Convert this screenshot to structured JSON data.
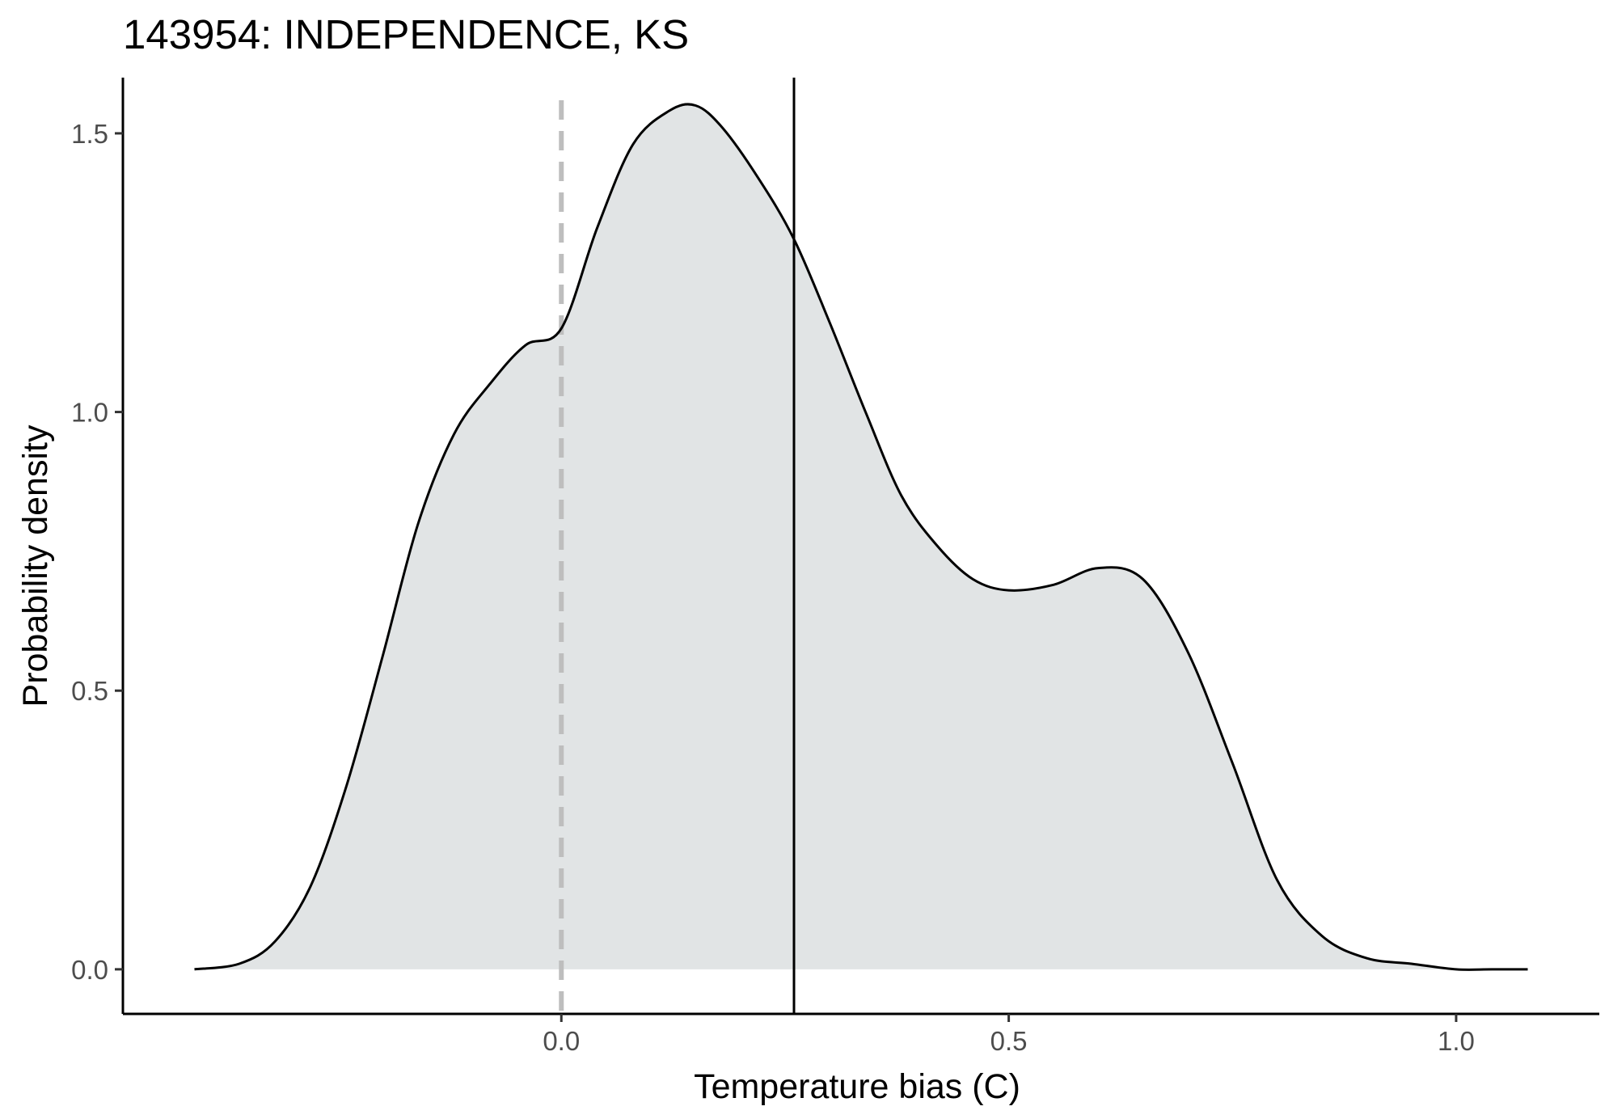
{
  "chart_data": {
    "type": "area",
    "title": "143954: INDEPENDENCE, KS",
    "xlabel": "Temperature bias (C)",
    "ylabel": "Probability density",
    "xlim": [
      -0.49,
      1.16
    ],
    "ylim": [
      -0.08,
      1.6
    ],
    "x_ticks": [
      0.0,
      0.5,
      1.0
    ],
    "x_tick_labels": [
      "0.0",
      "0.5",
      "1.0"
    ],
    "y_ticks": [
      0.0,
      0.5,
      1.0,
      1.5
    ],
    "y_tick_labels": [
      "0.0",
      "0.5",
      "1.0",
      "1.5"
    ],
    "grid": false,
    "fill_color": "#e1e4e5",
    "line_color": "#000000",
    "x": [
      -0.41,
      -0.36,
      -0.32,
      -0.28,
      -0.24,
      -0.2,
      -0.16,
      -0.12,
      -0.08,
      -0.04,
      0.0,
      0.04,
      0.08,
      0.12,
      0.15,
      0.18,
      0.22,
      0.26,
      0.3,
      0.34,
      0.38,
      0.42,
      0.46,
      0.5,
      0.55,
      0.6,
      0.65,
      0.7,
      0.75,
      0.8,
      0.85,
      0.9,
      0.95,
      1.0,
      1.04,
      1.08
    ],
    "y": [
      0.0,
      0.01,
      0.05,
      0.15,
      0.33,
      0.56,
      0.8,
      0.96,
      1.05,
      1.12,
      1.15,
      1.33,
      1.48,
      1.54,
      1.55,
      1.51,
      1.42,
      1.31,
      1.16,
      1.0,
      0.85,
      0.76,
      0.7,
      0.68,
      0.69,
      0.72,
      0.7,
      0.57,
      0.37,
      0.16,
      0.06,
      0.02,
      0.01,
      0.0,
      0.0,
      0.0
    ],
    "reference_lines": [
      {
        "x": 0.0,
        "style": "dashed",
        "color": "#bebebe"
      },
      {
        "x": 0.26,
        "style": "solid",
        "color": "#000000"
      }
    ]
  }
}
